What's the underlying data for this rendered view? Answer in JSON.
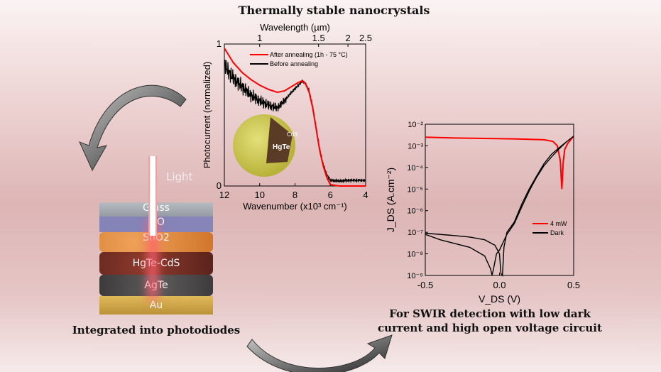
{
  "title": "Thermally stable nanocrystals",
  "caption_left": "Integrated into photodiodes",
  "caption_right_line1": "For SWIR detection with low dark",
  "caption_right_line2": "current and high open voltage circuit",
  "device": {
    "light_label": "Light",
    "layers": [
      "Glass",
      "ITO",
      "SnO2",
      "HgTe-CdS",
      "AgTe",
      "Au"
    ],
    "colors": [
      "#9aa4ad",
      "#7e7fb8",
      "#e0852e",
      "#6e2218",
      "#3e3e40",
      "#d2a73e"
    ]
  },
  "nanocrystal": {
    "core_label": "HgTe",
    "shell_label": "CdS"
  },
  "chart_data": [
    {
      "type": "line",
      "xlabel": "Wavenumber (x10³ cm⁻¹)",
      "ylabel": "Photocurrent (normalized)",
      "top_axis_label": "Wavelength (µm)",
      "xlim": [
        12,
        4
      ],
      "ylim": [
        0,
        1
      ],
      "x_ticks": [
        "12",
        "10",
        "8",
        "6",
        "4"
      ],
      "y_ticks": [
        "0",
        "1"
      ],
      "top_ticks": [
        "1",
        "1.5",
        "2",
        "2.5"
      ],
      "top_tick_values_um": [
        1,
        1.5,
        2,
        2.5
      ],
      "legend_placement": "top-right",
      "series": [
        {
          "name": "After annealing (1h - 75 °C)",
          "color": "#ff0000",
          "x": [
            12,
            11.5,
            11,
            10.5,
            10,
            9.5,
            9,
            8.6,
            8.2,
            7.8,
            7.6,
            7.4,
            7.2,
            7,
            6.8,
            6.6,
            6.4,
            6.2,
            6,
            5.5,
            5,
            4.5,
            4
          ],
          "y": [
            0.97,
            0.87,
            0.8,
            0.75,
            0.71,
            0.68,
            0.66,
            0.67,
            0.7,
            0.73,
            0.74,
            0.72,
            0.66,
            0.55,
            0.4,
            0.25,
            0.14,
            0.06,
            0.01,
            0,
            0,
            0,
            0
          ]
        },
        {
          "name": "Before annealing",
          "color": "#000000",
          "x": [
            12,
            11.5,
            11,
            10.5,
            10,
            9.5,
            9,
            8.6,
            8.2,
            7.8,
            7.6,
            7.4,
            7.2,
            7,
            6.8,
            6.6,
            6.4,
            6.2,
            6,
            5.5,
            5,
            4.5,
            4
          ],
          "y": [
            0.85,
            0.76,
            0.7,
            0.64,
            0.6,
            0.57,
            0.55,
            0.6,
            0.66,
            0.71,
            0.74,
            0.72,
            0.67,
            0.56,
            0.41,
            0.26,
            0.15,
            0.08,
            0.04,
            0.035,
            0.04,
            0.04,
            0.04
          ]
        }
      ]
    },
    {
      "type": "line",
      "xlabel": "V_DS (V)",
      "ylabel": "J_DS (A.cm⁻²)",
      "yscale": "log",
      "xlim": [
        -0.5,
        0.5
      ],
      "ylim": [
        1e-09,
        0.01
      ],
      "x_ticks": [
        "-0.5",
        "0.0",
        "0.5"
      ],
      "y_ticks": [
        "10⁻⁹",
        "10⁻⁸",
        "10⁻⁷",
        "10⁻⁶",
        "10⁻⁵",
        "10⁻⁴",
        "10⁻³",
        "10⁻²"
      ],
      "legend_placement": "lower-right",
      "series": [
        {
          "name": "4 mW",
          "color": "#ff0000",
          "x": [
            -0.5,
            -0.3,
            -0.1,
            0.1,
            0.3,
            0.36,
            0.39,
            0.41,
            0.42,
            0.43,
            0.44,
            0.46,
            0.5
          ],
          "y": [
            0.0025,
            0.0023,
            0.0022,
            0.0021,
            0.0019,
            0.0016,
            0.001,
            0.0002,
            1e-05,
            0.0002,
            0.0007,
            0.0013,
            0.0028
          ]
        },
        {
          "name": "Dark",
          "color": "#000000",
          "x": [
            -0.5,
            -0.3,
            -0.2,
            -0.1,
            -0.03,
            0,
            0.01,
            0.02,
            0.03,
            0.05,
            0.1,
            0.15,
            0.2,
            0.25,
            0.3,
            0.35,
            0.4,
            0.45,
            0.5,
            0.45,
            0.4,
            0.35,
            0.3,
            0.25,
            0.2,
            0.15,
            0.1,
            0.05,
            0,
            -0.02,
            -0.04,
            -0.05,
            -0.06,
            -0.1,
            -0.2,
            -0.3,
            -0.4,
            -0.5
          ],
          "y": [
            9e-08,
            7e-08,
            6e-08,
            4.5e-08,
            2.5e-08,
            1e-08,
            1.2e-09,
            1e-09,
            2e-08,
            1e-07,
            3e-07,
            2e-06,
            1e-05,
            4e-05,
            0.00015,
            0.0004,
            0.0008,
            0.0015,
            0.0028,
            0.0015,
            0.0007,
            0.0003,
            0.00012,
            3.5e-05,
            8e-06,
            1.5e-06,
            2.5e-07,
            8e-08,
            1.5e-08,
            1e-08,
            2e-09,
            1e-09,
            2e-09,
            8e-09,
            2e-08,
            3e-08,
            4.5e-08,
            8e-08
          ]
        }
      ]
    }
  ]
}
